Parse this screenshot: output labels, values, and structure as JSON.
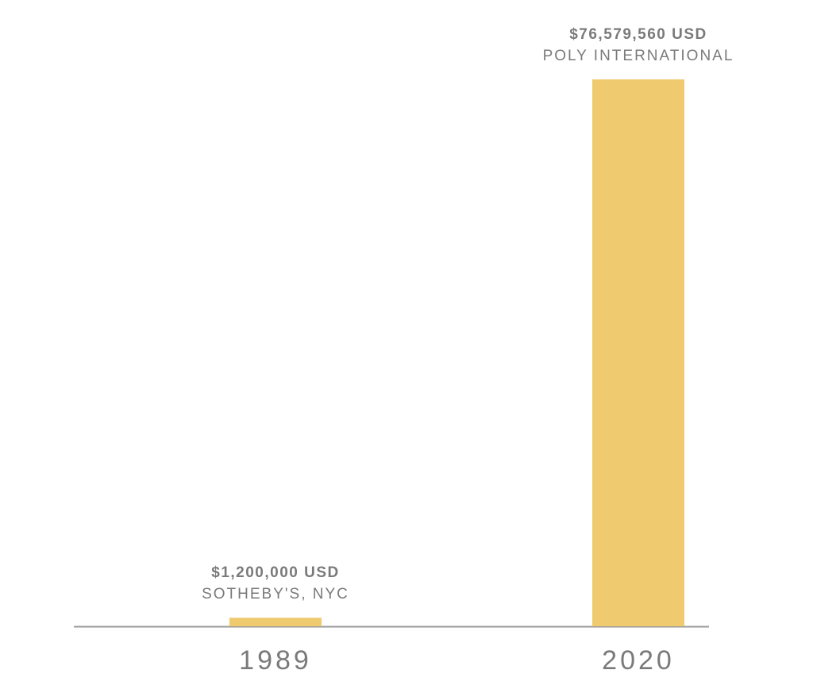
{
  "chart_data": {
    "type": "bar",
    "categories": [
      "1989",
      "2020"
    ],
    "values": [
      1200000,
      76579560
    ],
    "value_labels": [
      "$1,200,000 USD",
      "$76,579,560 USD"
    ],
    "annotations": [
      "SOTHEBY'S, NYC",
      "POLY INTERNATIONAL"
    ],
    "color": "#efca6e"
  }
}
